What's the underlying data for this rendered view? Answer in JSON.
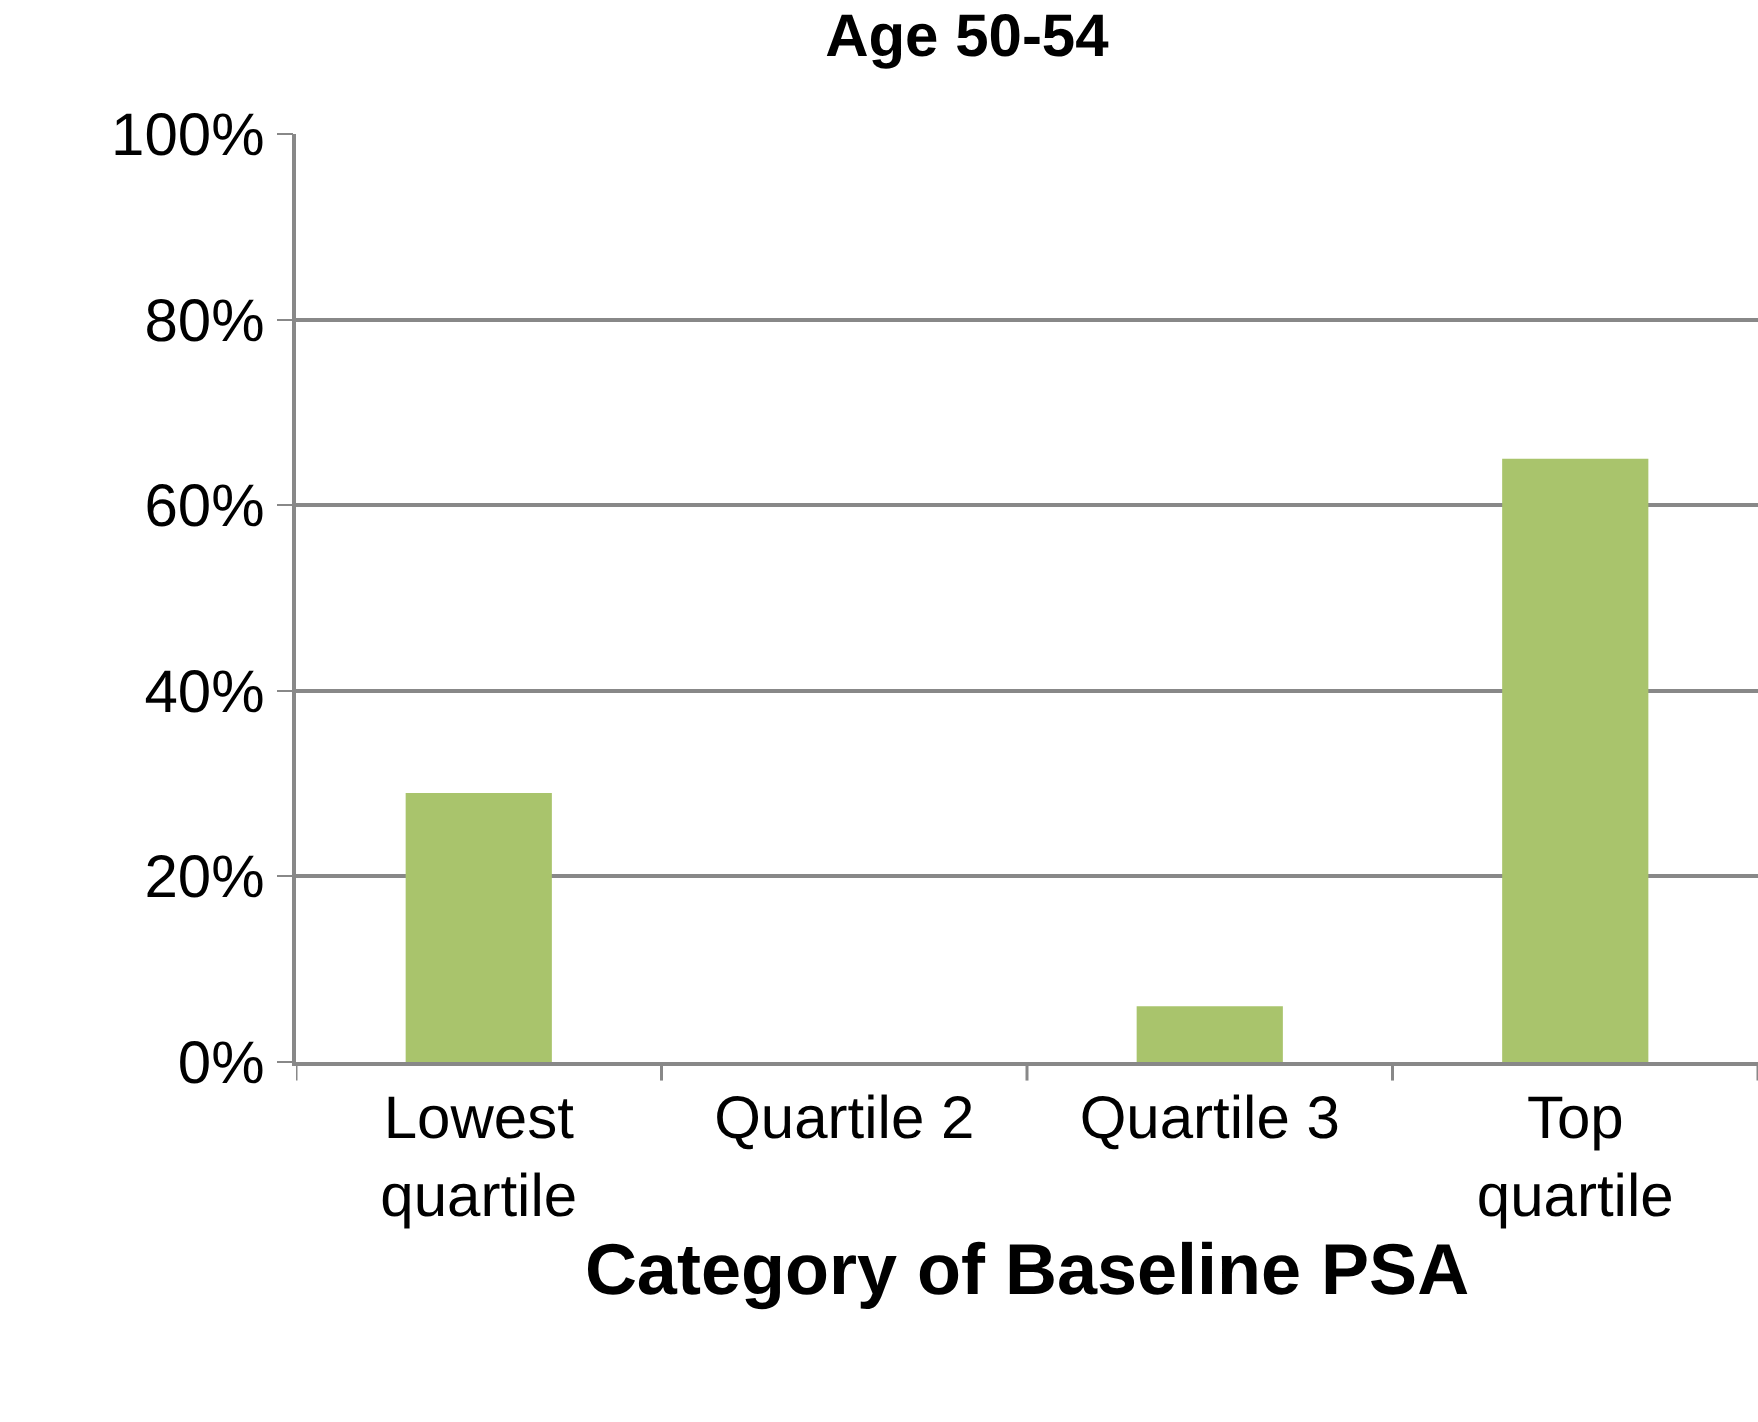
{
  "chart_data": {
    "type": "bar",
    "title": "Age 50-54",
    "xlabel": "Category of Baseline PSA",
    "categories": [
      "Lowest\nquartile",
      "Quartile 2",
      "Quartile 3",
      "Top\nquartile"
    ],
    "values": [
      29,
      0,
      6,
      65
    ],
    "color": "#a9c46c",
    "ylim": [
      0,
      100
    ],
    "yticks": [
      {
        "value": 0,
        "label": "0%"
      },
      {
        "value": 20,
        "label": "20%"
      },
      {
        "value": 40,
        "label": "40%"
      },
      {
        "value": 60,
        "label": "60%"
      },
      {
        "value": 80,
        "label": "80%"
      },
      {
        "value": 100,
        "label": "100%"
      }
    ],
    "grid": "y",
    "legend": false
  }
}
